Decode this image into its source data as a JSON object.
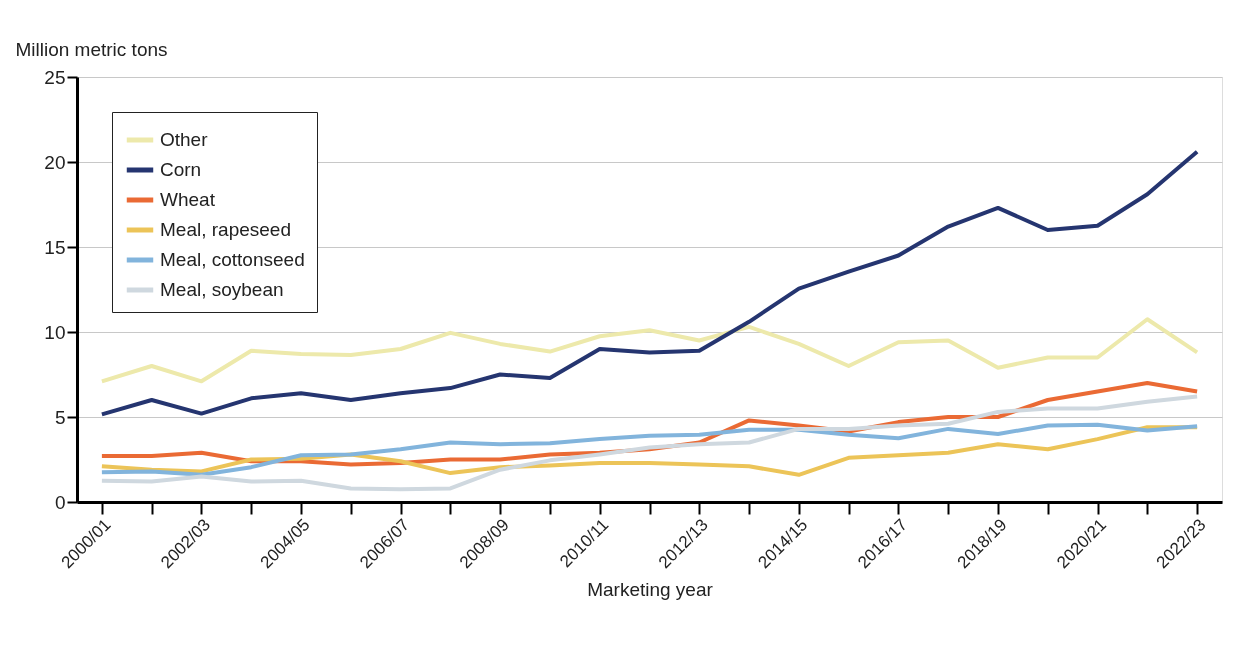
{
  "chart_data": {
    "type": "line",
    "xlabel": "Marketing year",
    "ylabel": "Million metric tons",
    "categories": [
      "2000/01",
      null,
      "2002/03",
      null,
      "2004/05",
      null,
      "2006/07",
      null,
      "2008/09",
      null,
      "2010/11",
      null,
      "2012/13",
      null,
      "2014/15",
      null,
      "2016/17",
      null,
      "2018/19",
      null,
      "2020/21",
      null,
      "2022/23"
    ],
    "series": [
      {
        "name": "Other",
        "color": "#ede9ab",
        "values": [
          7.1,
          8.0,
          7.1,
          8.9,
          8.7,
          8.65,
          9.0,
          9.95,
          9.3,
          8.85,
          9.75,
          10.1,
          9.5,
          10.3,
          9.3,
          8.0,
          9.4,
          9.5,
          7.9,
          8.5,
          8.5,
          10.75,
          8.8
        ]
      },
      {
        "name": "Corn",
        "color": "#253570",
        "values": [
          5.15,
          6.0,
          5.2,
          6.1,
          6.4,
          6.0,
          6.4,
          6.7,
          7.5,
          7.3,
          9.0,
          8.8,
          8.9,
          10.6,
          12.55,
          13.55,
          14.5,
          16.2,
          17.3,
          16.0,
          16.25,
          18.1,
          20.6
        ]
      },
      {
        "name": "Wheat",
        "color": "#ea6a34",
        "values": [
          2.7,
          2.7,
          2.9,
          2.4,
          2.4,
          2.2,
          2.3,
          2.5,
          2.5,
          2.8,
          2.9,
          3.1,
          3.5,
          4.8,
          4.5,
          4.15,
          4.7,
          5.0,
          5.0,
          6.0,
          6.5,
          7.0,
          6.5
        ]
      },
      {
        "name": "Meal, rapeseed",
        "color": "#ecc458",
        "values": [
          2.1,
          1.9,
          1.8,
          2.5,
          2.55,
          2.8,
          2.4,
          1.7,
          2.05,
          2.15,
          2.3,
          2.3,
          2.2,
          2.1,
          1.6,
          2.6,
          2.75,
          2.9,
          3.4,
          3.1,
          3.7,
          4.4,
          4.4
        ]
      },
      {
        "name": "Meal, cottonseed",
        "color": "#82b4dc",
        "values": [
          1.75,
          1.8,
          1.6,
          2.05,
          2.75,
          2.8,
          3.1,
          3.5,
          3.4,
          3.45,
          3.7,
          3.9,
          3.95,
          4.25,
          4.25,
          3.95,
          3.75,
          4.3,
          4.0,
          4.5,
          4.55,
          4.2,
          4.45
        ]
      },
      {
        "name": "Meal, soybean",
        "color": "#cfd8df",
        "values": [
          1.25,
          1.2,
          1.5,
          1.2,
          1.25,
          0.8,
          0.75,
          0.8,
          1.9,
          2.45,
          2.8,
          3.2,
          3.4,
          3.5,
          4.3,
          4.3,
          4.5,
          4.6,
          5.3,
          5.5,
          5.5,
          5.9,
          6.2
        ]
      }
    ],
    "ylim": [
      0,
      25
    ],
    "yticks": [
      0,
      5,
      10,
      15,
      20,
      25
    ],
    "grid": "y",
    "legend": "top left",
    "line_style": "solid"
  }
}
